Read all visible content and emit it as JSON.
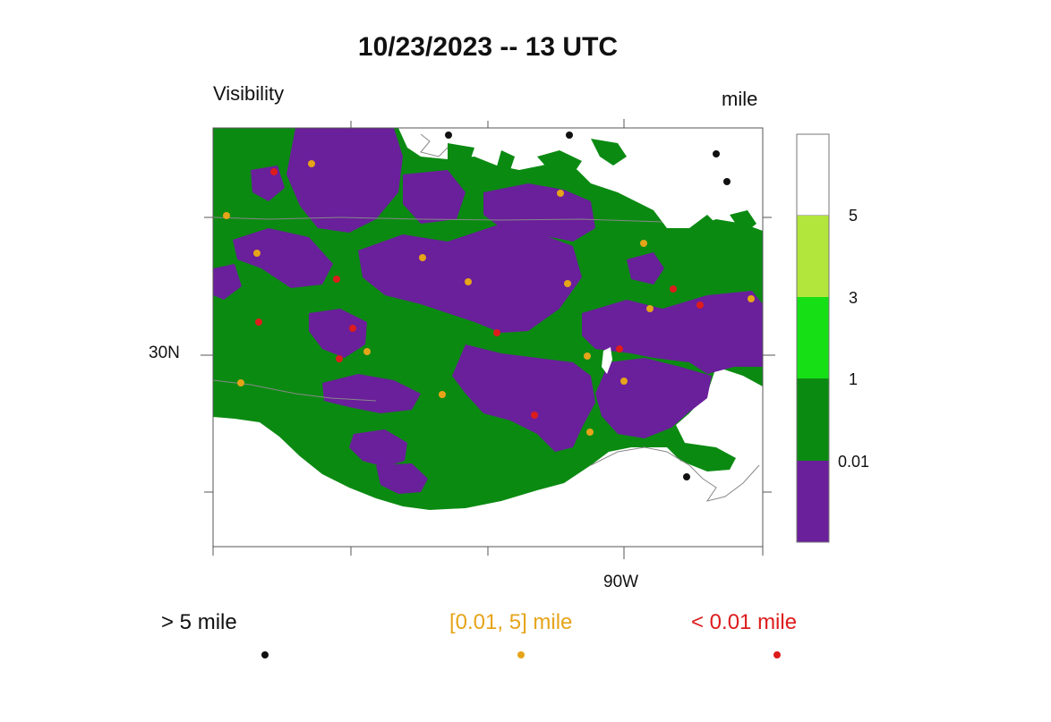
{
  "title": "10/23/2023 -- 13 UTC",
  "variable_label": "Visibility",
  "units_label": "mile",
  "lat_tick_label": "30N",
  "lon_tick_label": "90W",
  "colors": {
    "lt_0_01": "#6a1f9b",
    "0_01_to_1": "#0b8a12",
    "1_to_3": "#16df16",
    "3_to_5": "#b2e63c",
    "gt_5": "#ffffff",
    "frame": "#555555",
    "coast": "#888888"
  },
  "colorbar": {
    "levels": [
      "5",
      "3",
      "1",
      "0.01"
    ]
  },
  "station_legend": [
    {
      "label": "> 5 mile",
      "color": "#111111"
    },
    {
      "label": "[0.01, 5] mile",
      "color": "#e6a419"
    },
    {
      "label": "< 0.01 mile",
      "color": "#dd1c1c"
    }
  ]
}
